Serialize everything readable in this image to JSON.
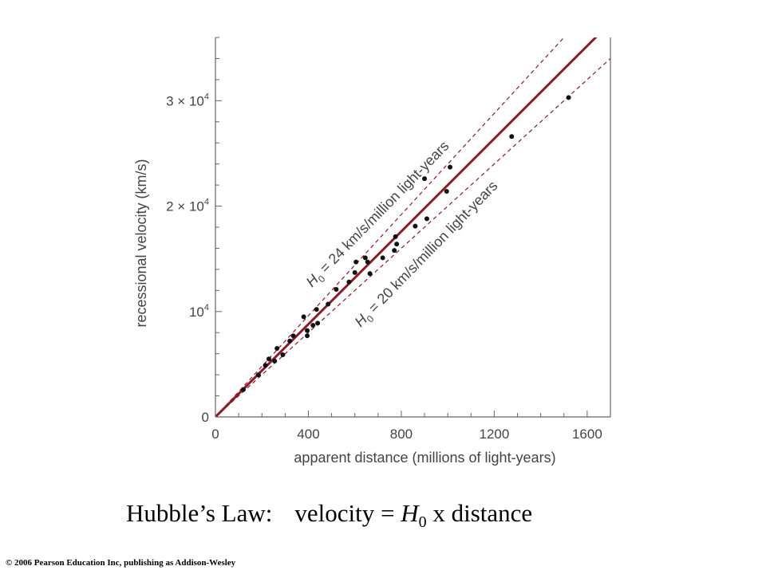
{
  "chart_data": {
    "type": "scatter",
    "xlabel": "apparent distance (millions of light-years)",
    "ylabel": "recessional velocity (km/s)",
    "xlim": [
      0,
      1700
    ],
    "ylim": [
      0,
      36000
    ],
    "x_ticks": [
      0,
      400,
      800,
      1200,
      1600
    ],
    "x_tick_labels": [
      "0",
      "400",
      "800",
      "1200",
      "1600"
    ],
    "y_ticks": [
      0,
      10000,
      20000,
      30000
    ],
    "y_tick_labels": [
      {
        "base": "0",
        "exp": ""
      },
      {
        "base": "10",
        "exp": "4"
      },
      {
        "base": "2 × 10",
        "exp": "4"
      },
      {
        "base": "3 × 10",
        "exp": "4"
      }
    ],
    "grid": false,
    "colors": {
      "fit_line": "#8b1a2b",
      "bound_lines": "#8b1a2b",
      "points": "#111111",
      "axes": "#666666"
    },
    "lines": [
      {
        "role": "fit",
        "slope": 22,
        "style": "solid"
      },
      {
        "role": "upper",
        "slope": 24,
        "style": "dashed",
        "label_base": "H",
        "label_sub": "0",
        "label_rest": " = 24 km/s/million light-years"
      },
      {
        "role": "lower",
        "slope": 20,
        "style": "dashed",
        "label_base": "H",
        "label_sub": "0",
        "label_rest": " = 20 km/s/million light-years"
      }
    ],
    "points": [
      [
        120,
        2600
      ],
      [
        185,
        4000
      ],
      [
        215,
        4900
      ],
      [
        230,
        5500
      ],
      [
        255,
        5300
      ],
      [
        265,
        6500
      ],
      [
        290,
        5900
      ],
      [
        320,
        7200
      ],
      [
        335,
        7700
      ],
      [
        380,
        9500
      ],
      [
        395,
        8200
      ],
      [
        395,
        7700
      ],
      [
        420,
        8700
      ],
      [
        435,
        10200
      ],
      [
        440,
        8900
      ],
      [
        485,
        10700
      ],
      [
        520,
        12100
      ],
      [
        575,
        12800
      ],
      [
        600,
        13700
      ],
      [
        605,
        14700
      ],
      [
        645,
        15100
      ],
      [
        655,
        14700
      ],
      [
        665,
        13600
      ],
      [
        720,
        15100
      ],
      [
        770,
        15800
      ],
      [
        775,
        17100
      ],
      [
        780,
        16400
      ],
      [
        860,
        18100
      ],
      [
        900,
        22600
      ],
      [
        910,
        18800
      ],
      [
        995,
        21400
      ],
      [
        1010,
        23700
      ],
      [
        1275,
        26600
      ],
      [
        1520,
        30300
      ]
    ]
  },
  "caption": {
    "prefix": "Hubble’s Law:",
    "formula_lead": "velocity = ",
    "symbol": "H",
    "subscript": "0",
    "formula_tail": " x distance"
  },
  "copyright": "© 2006 Pearson Education Inc, publishing as Addison-Wesley"
}
